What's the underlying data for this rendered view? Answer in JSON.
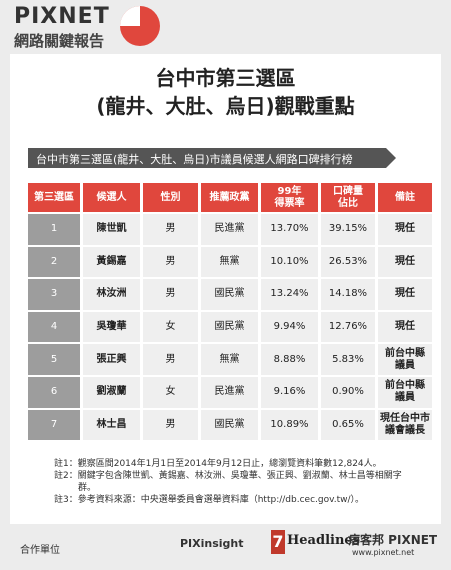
{
  "header": {
    "brand": "PIXNET",
    "subbrand": "網路關鍵報告"
  },
  "title": {
    "line1": "台中市第三選區",
    "line2": "(龍井、大肚、烏日)觀戰重點"
  },
  "table": {
    "caption": "台中市第三選區(龍井、大肚、烏日)市議員候選人網路口碑排行榜",
    "columns": [
      [
        "第三選區"
      ],
      [
        "候選人"
      ],
      [
        "性別"
      ],
      [
        "推薦政黨"
      ],
      [
        "99年",
        "得票率"
      ],
      [
        "口碑量",
        "佔比"
      ],
      [
        "備註"
      ]
    ],
    "rows": [
      [
        [
          "1"
        ],
        [
          "陳世凱"
        ],
        [
          "男"
        ],
        [
          "民進黨"
        ],
        [
          "13.70%"
        ],
        [
          "39.15%"
        ],
        [
          "現任"
        ]
      ],
      [
        [
          "2"
        ],
        [
          "黃錫嘉"
        ],
        [
          "男"
        ],
        [
          "無黨"
        ],
        [
          "10.10%"
        ],
        [
          "26.53%"
        ],
        [
          "現任"
        ]
      ],
      [
        [
          "3"
        ],
        [
          "林汝洲"
        ],
        [
          "男"
        ],
        [
          "國民黨"
        ],
        [
          "13.24%"
        ],
        [
          "14.18%"
        ],
        [
          "現任"
        ]
      ],
      [
        [
          "4"
        ],
        [
          "吳瓊華"
        ],
        [
          "女"
        ],
        [
          "國民黨"
        ],
        [
          "9.94%"
        ],
        [
          "12.76%"
        ],
        [
          "現任"
        ]
      ],
      [
        [
          "5"
        ],
        [
          "張正興"
        ],
        [
          "男"
        ],
        [
          "無黨"
        ],
        [
          "8.88%"
        ],
        [
          "5.83%"
        ],
        [
          "前台中縣",
          "議員"
        ]
      ],
      [
        [
          "6"
        ],
        [
          "劉淑蘭"
        ],
        [
          "女"
        ],
        [
          "民進黨"
        ],
        [
          "9.16%"
        ],
        [
          "0.90%"
        ],
        [
          "前台中縣",
          "議員"
        ]
      ],
      [
        [
          "7"
        ],
        [
          "林士昌"
        ],
        [
          "男"
        ],
        [
          "國民黨"
        ],
        [
          "10.89%"
        ],
        [
          "0.65%"
        ],
        [
          "現任台中市",
          "議會議長"
        ]
      ]
    ]
  },
  "notes": [
    "註1：觀察區間2014年1月1日至2014年9月12日止，總瀏覽資料筆數12,824人。",
    "註2：關鍵字包含陳世凱、黃錫嘉、林汝洲、吳瓊華、張正興、劉淑蘭、林士昌等相關字群。",
    "註3：參考資料來源：中央選舉委員會選舉資料庫（http://db.cec.gov.tw/）。"
  ],
  "footer": {
    "label": "合作單位",
    "partner1": "PIXinsight",
    "partner2": "Headlines",
    "partner2_mark": "7",
    "partner3": "痞客邦 PIXNET",
    "url": "www.pixnet.net"
  }
}
